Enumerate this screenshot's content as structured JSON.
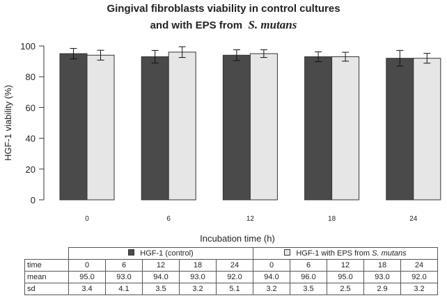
{
  "chart_data": {
    "type": "bar",
    "title_line1": "Gingival fibroblasts viability in control cultures",
    "title_line2": "and with EPS from",
    "title_species": "S. mutans",
    "xlabel": "Incubation time (h)",
    "ylabel": "HGF-1 viability (%)",
    "ylim": [
      0,
      100
    ],
    "yticks": [
      "0",
      "20",
      "40",
      "60",
      "80",
      "100"
    ],
    "categories": [
      "0",
      "6",
      "12",
      "18",
      "24"
    ],
    "series": [
      {
        "name": "HGF-1 (control)",
        "color": "#4a4a4a",
        "values": [
          95.0,
          93.0,
          94.0,
          93.0,
          92.0
        ],
        "sd": [
          3.4,
          4.1,
          3.5,
          3.2,
          5.1
        ]
      },
      {
        "name": "HGF-1 with EPS from",
        "name_species": "S. mutans",
        "color": "#e6e6e6",
        "values": [
          94.0,
          96.0,
          95.0,
          93.0,
          92.0
        ],
        "sd": [
          3.2,
          3.5,
          2.5,
          2.9,
          3.2
        ]
      }
    ]
  },
  "table": {
    "row_labels": [
      "time",
      "mean",
      "sd"
    ],
    "control": {
      "time": [
        "0",
        "6",
        "12",
        "18",
        "24"
      ],
      "mean": [
        "95.0",
        "93.0",
        "94.0",
        "93.0",
        "92.0"
      ],
      "sd": [
        "3.4",
        "4.1",
        "3.5",
        "3.2",
        "5.1"
      ]
    },
    "eps": {
      "time": [
        "0",
        "6",
        "12",
        "18",
        "24"
      ],
      "mean": [
        "94.0",
        "96.0",
        "95.0",
        "93.0",
        "92.0"
      ],
      "sd": [
        "3.2",
        "3.5",
        "2.5",
        "2.9",
        "3.2"
      ]
    }
  }
}
